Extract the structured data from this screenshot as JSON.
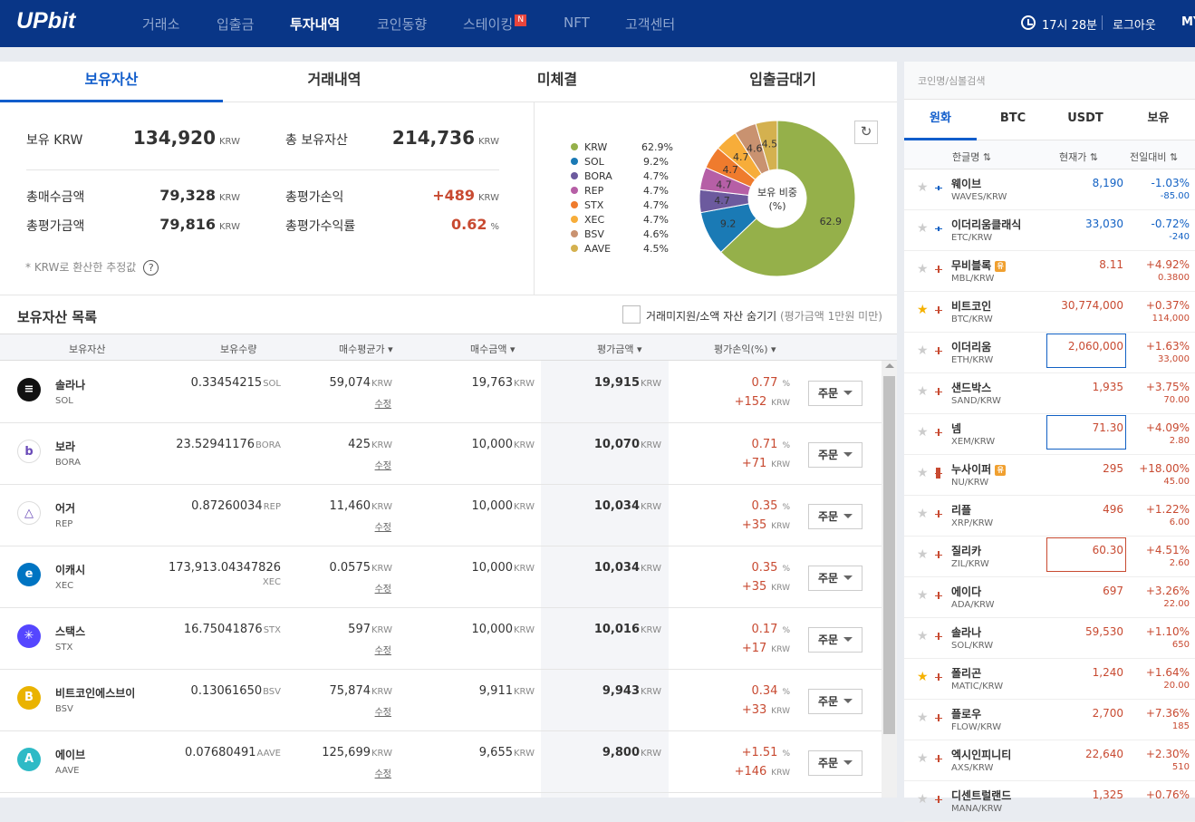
{
  "header": {
    "logo": "UPbit",
    "nav": [
      "거래소",
      "입출금",
      "투자내역",
      "코인동향",
      "스테이킹",
      "NFT",
      "고객센터"
    ],
    "nav_active": "투자내역",
    "staking_badge": "N",
    "time": "17시 28분",
    "logout": "로그아웃",
    "my": "MY"
  },
  "tabs": [
    "보유자산",
    "거래내역",
    "미체결",
    "입출금대기"
  ],
  "summary": {
    "krw_label": "보유 KRW",
    "krw_value": "134,920",
    "krw_unit": "KRW",
    "total_label": "총 보유자산",
    "total_value": "214,736",
    "total_unit": "KRW",
    "buy_label": "총매수금액",
    "buy_value": "79,328",
    "buy_unit": "KRW",
    "pnl_label": "총평가손익",
    "pnl_value": "+489",
    "pnl_unit": "KRW",
    "eval_label": "총평가금액",
    "eval_value": "79,816",
    "eval_unit": "KRW",
    "rate_label": "총평가수익률",
    "rate_value": "0.62",
    "rate_unit": "%",
    "note": "* KRW로 환산한 추정값",
    "help": "?"
  },
  "donut": {
    "center_line1": "보유 비중",
    "center_line2": "(%)",
    "refresh": "↻",
    "items": [
      {
        "name": "KRW",
        "pct": 62.9,
        "label": "62.9%",
        "color": "#95b04a"
      },
      {
        "name": "SOL",
        "pct": 9.2,
        "label": "9.2%",
        "color": "#1a7ab5"
      },
      {
        "name": "BORA",
        "pct": 4.7,
        "label": "4.7%",
        "color": "#6c5a9e"
      },
      {
        "name": "REP",
        "pct": 4.7,
        "label": "4.7%",
        "color": "#b65fa6"
      },
      {
        "name": "STX",
        "pct": 4.7,
        "label": "4.7%",
        "color": "#ef7b2d"
      },
      {
        "name": "XEC",
        "pct": 4.7,
        "label": "4.7%",
        "color": "#f7ad3a"
      },
      {
        "name": "BSV",
        "pct": 4.6,
        "label": "4.6%",
        "color": "#c99270"
      },
      {
        "name": "AAVE",
        "pct": 4.5,
        "label": "4.5%",
        "color": "#d4b14f"
      }
    ]
  },
  "holdings": {
    "title": "보유자산 목록",
    "hide_label": "거래미지원/소액 자산 숨기기",
    "hide_note": "(평가금액 1만원 미만)",
    "columns": [
      "보유자산",
      "보유수량",
      "매수평균가",
      "매수금액",
      "평가금액",
      "평가손익(%)"
    ],
    "krw": "KRW",
    "edit": "수정",
    "order": "주문",
    "rows": [
      {
        "name": "솔라나",
        "sym": "SOL",
        "qty": "0.33454215",
        "qty_sym": "SOL",
        "avg": "59,074",
        "buy": "19,763",
        "eval": "19,915",
        "pct": "0.77",
        "pnl": "+152",
        "icon_color": "#111111",
        "icon": "≡"
      },
      {
        "name": "보라",
        "sym": "BORA",
        "qty": "23.52941176",
        "qty_sym": "BORA",
        "avg": "425",
        "buy": "10,000",
        "eval": "10,070",
        "pct": "0.71",
        "pnl": "+71",
        "icon_color": "#ffffff",
        "icon": "b"
      },
      {
        "name": "어거",
        "sym": "REP",
        "qty": "0.87260034",
        "qty_sym": "REP",
        "avg": "11,460",
        "buy": "10,000",
        "eval": "10,034",
        "pct": "0.35",
        "pnl": "+35",
        "icon_color": "#ffffff",
        "icon": "△"
      },
      {
        "name": "이캐시",
        "sym": "XEC",
        "qty": "173,913.04347826",
        "qty_sym": "XEC",
        "avg": "0.0575",
        "buy": "10,000",
        "eval": "10,034",
        "pct": "0.35",
        "pnl": "+35",
        "icon_color": "#0074c2",
        "icon": "e"
      },
      {
        "name": "스택스",
        "sym": "STX",
        "qty": "16.75041876",
        "qty_sym": "STX",
        "avg": "597",
        "buy": "10,000",
        "eval": "10,016",
        "pct": "0.17",
        "pnl": "+17",
        "icon_color": "#5546ff",
        "icon": "✳"
      },
      {
        "name": "비트코인에스브이",
        "sym": "BSV",
        "qty": "0.13061650",
        "qty_sym": "BSV",
        "avg": "75,874",
        "buy": "9,911",
        "eval": "9,943",
        "pct": "0.34",
        "pnl": "+33",
        "icon_color": "#eab300",
        "icon": "B"
      },
      {
        "name": "에이브",
        "sym": "AAVE",
        "qty": "0.07680491",
        "qty_sym": "AAVE",
        "avg": "125,699",
        "buy": "9,655",
        "eval": "9,800",
        "pct": "+1.51",
        "pnl": "+146",
        "icon_color": "#2ebac6",
        "icon": "A"
      }
    ]
  },
  "market": {
    "search_placeholder": "코인명/심볼검색",
    "tabs": [
      "원화",
      "BTC",
      "USDT",
      "보유"
    ],
    "headers": {
      "name": "한글명",
      "price": "현재가",
      "change": "전일대비"
    },
    "warn_badge": "유",
    "rows": [
      {
        "star": false,
        "name": "웨이브",
        "sym": "WAVES/KRW",
        "price": "8,190",
        "pct": "-1.03%",
        "diff": "-85.00",
        "dir": "down",
        "box": false,
        "warn": false
      },
      {
        "star": false,
        "name": "이더리움클래식",
        "sym": "ETC/KRW",
        "price": "33,030",
        "pct": "-0.72%",
        "diff": "-240",
        "dir": "down",
        "box": false,
        "warn": false
      },
      {
        "star": false,
        "name": "무비블록",
        "sym": "MBL/KRW",
        "price": "8.11",
        "pct": "+4.92%",
        "diff": "0.3800",
        "dir": "up",
        "box": false,
        "warn": true
      },
      {
        "star": true,
        "name": "비트코인",
        "sym": "BTC/KRW",
        "price": "30,774,000",
        "pct": "+0.37%",
        "diff": "114,000",
        "dir": "up",
        "box": false,
        "warn": false
      },
      {
        "star": false,
        "name": "이더리움",
        "sym": "ETH/KRW",
        "price": "2,060,000",
        "pct": "+1.63%",
        "diff": "33,000",
        "dir": "up",
        "box": "blue",
        "warn": false
      },
      {
        "star": false,
        "name": "샌드박스",
        "sym": "SAND/KRW",
        "price": "1,935",
        "pct": "+3.75%",
        "diff": "70.00",
        "dir": "up",
        "box": false,
        "warn": false
      },
      {
        "star": false,
        "name": "넴",
        "sym": "XEM/KRW",
        "price": "71.30",
        "pct": "+4.09%",
        "diff": "2.80",
        "dir": "up",
        "box": "blue",
        "warn": false
      },
      {
        "star": false,
        "name": "누사이퍼",
        "sym": "NU/KRW",
        "price": "295",
        "pct": "+18.00%",
        "diff": "45.00",
        "dir": "up",
        "box": false,
        "warn": true,
        "tall": true
      },
      {
        "star": false,
        "name": "리플",
        "sym": "XRP/KRW",
        "price": "496",
        "pct": "+1.22%",
        "diff": "6.00",
        "dir": "up",
        "box": false,
        "warn": false
      },
      {
        "star": false,
        "name": "질리카",
        "sym": "ZIL/KRW",
        "price": "60.30",
        "pct": "+4.51%",
        "diff": "2.60",
        "dir": "up",
        "box": "red",
        "warn": false
      },
      {
        "star": false,
        "name": "에이다",
        "sym": "ADA/KRW",
        "price": "697",
        "pct": "+3.26%",
        "diff": "22.00",
        "dir": "up",
        "box": false,
        "warn": false
      },
      {
        "star": false,
        "name": "솔라나",
        "sym": "SOL/KRW",
        "price": "59,530",
        "pct": "+1.10%",
        "diff": "650",
        "dir": "up",
        "box": false,
        "warn": false
      },
      {
        "star": true,
        "name": "폴리곤",
        "sym": "MATIC/KRW",
        "price": "1,240",
        "pct": "+1.64%",
        "diff": "20.00",
        "dir": "up",
        "box": false,
        "warn": false
      },
      {
        "star": false,
        "name": "플로우",
        "sym": "FLOW/KRW",
        "price": "2,700",
        "pct": "+7.36%",
        "diff": "185",
        "dir": "up",
        "box": false,
        "warn": false
      },
      {
        "star": false,
        "name": "엑시인피니티",
        "sym": "AXS/KRW",
        "price": "22,640",
        "pct": "+2.30%",
        "diff": "510",
        "dir": "up",
        "box": false,
        "warn": false
      },
      {
        "star": false,
        "name": "디센트럴랜드",
        "sym": "MANA/KRW",
        "price": "1,325",
        "pct": "+0.76%",
        "diff": "",
        "dir": "up",
        "box": false,
        "warn": false
      }
    ]
  }
}
